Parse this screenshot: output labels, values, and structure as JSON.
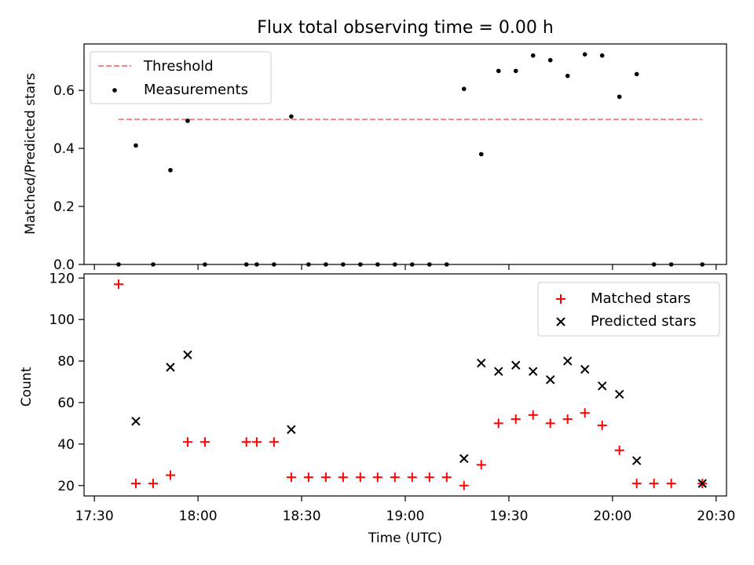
{
  "figure": {
    "title": "Flux total observing time = 0.00 h"
  },
  "colors": {
    "threshold": "#ff8080",
    "measurement": "#000000",
    "matched": "#ff0000",
    "predicted": "#000000"
  },
  "chart_data": [
    {
      "type": "scatter",
      "panel": "top",
      "title": "Flux total observing time = 0.00 h",
      "xlabel": "",
      "ylabel": "Matched/Predicted stars",
      "ylim": [
        0,
        0.76
      ],
      "yticks": [
        "0.0",
        "0.2",
        "0.4",
        "0.6"
      ],
      "ytick_values": [
        0,
        0.2,
        0.4,
        0.6
      ],
      "legend_position": "top-left",
      "threshold": {
        "name": "Threshold",
        "y": 0.5,
        "x_start": "17:37",
        "x_end": "20:26"
      },
      "series": [
        {
          "name": "Measurements",
          "points": [
            [
              "17:37",
              0.0
            ],
            [
              "17:42",
              0.41
            ],
            [
              "17:47",
              0.0
            ],
            [
              "17:52",
              0.325
            ],
            [
              "17:57",
              0.495
            ],
            [
              "18:02",
              0.0
            ],
            [
              "18:14",
              0.0
            ],
            [
              "18:17",
              0.0
            ],
            [
              "18:22",
              0.0
            ],
            [
              "18:27",
              0.51
            ],
            [
              "18:32",
              0.0
            ],
            [
              "18:37",
              0.0
            ],
            [
              "18:42",
              0.0
            ],
            [
              "18:47",
              0.0
            ],
            [
              "18:52",
              0.0
            ],
            [
              "18:57",
              0.0
            ],
            [
              "19:02",
              0.0
            ],
            [
              "19:07",
              0.0
            ],
            [
              "19:12",
              0.0
            ],
            [
              "19:17",
              0.605
            ],
            [
              "19:22",
              0.38
            ],
            [
              "19:27",
              0.667
            ],
            [
              "19:32",
              0.667
            ],
            [
              "19:37",
              0.72
            ],
            [
              "19:42",
              0.704
            ],
            [
              "19:47",
              0.65
            ],
            [
              "19:52",
              0.724
            ],
            [
              "19:57",
              0.72
            ],
            [
              "20:02",
              0.578
            ],
            [
              "20:07",
              0.656
            ],
            [
              "20:12",
              0.0
            ],
            [
              "20:17",
              0.0
            ],
            [
              "20:26",
              0.0
            ]
          ]
        }
      ]
    },
    {
      "type": "scatter",
      "panel": "bottom",
      "xlabel": "Time (UTC)",
      "ylabel": "Count",
      "ylim": [
        15,
        122
      ],
      "yticks": [
        "20",
        "40",
        "60",
        "80",
        "100",
        "120"
      ],
      "ytick_values": [
        20,
        40,
        60,
        80,
        100,
        120
      ],
      "xlim": [
        "17:27",
        "20:33"
      ],
      "xticks": [
        "17:30",
        "18:00",
        "18:30",
        "19:00",
        "19:30",
        "20:00",
        "20:30"
      ],
      "legend_position": "top-right",
      "series": [
        {
          "name": "Matched stars",
          "marker": "plus",
          "points": [
            [
              "17:37",
              117
            ],
            [
              "17:42",
              21
            ],
            [
              "17:47",
              21
            ],
            [
              "17:52",
              25
            ],
            [
              "17:57",
              41
            ],
            [
              "18:02",
              41
            ],
            [
              "18:14",
              41
            ],
            [
              "18:17",
              41
            ],
            [
              "18:22",
              41
            ],
            [
              "18:27",
              24
            ],
            [
              "18:32",
              24
            ],
            [
              "18:37",
              24
            ],
            [
              "18:42",
              24
            ],
            [
              "18:47",
              24
            ],
            [
              "18:52",
              24
            ],
            [
              "18:57",
              24
            ],
            [
              "19:02",
              24
            ],
            [
              "19:07",
              24
            ],
            [
              "19:12",
              24
            ],
            [
              "19:17",
              20
            ],
            [
              "19:22",
              30
            ],
            [
              "19:27",
              50
            ],
            [
              "19:32",
              52
            ],
            [
              "19:37",
              54
            ],
            [
              "19:42",
              50
            ],
            [
              "19:47",
              52
            ],
            [
              "19:52",
              55
            ],
            [
              "19:57",
              49
            ],
            [
              "20:02",
              37
            ],
            [
              "20:07",
              21
            ],
            [
              "20:12",
              21
            ],
            [
              "20:17",
              21
            ],
            [
              "20:26",
              21
            ]
          ]
        },
        {
          "name": "Predicted stars",
          "marker": "x",
          "points": [
            [
              "17:42",
              51
            ],
            [
              "17:52",
              77
            ],
            [
              "17:57",
              83
            ],
            [
              "18:27",
              47
            ],
            [
              "19:17",
              33
            ],
            [
              "19:22",
              79
            ],
            [
              "19:27",
              75
            ],
            [
              "19:32",
              78
            ],
            [
              "19:37",
              75
            ],
            [
              "19:42",
              71
            ],
            [
              "19:47",
              80
            ],
            [
              "19:52",
              76
            ],
            [
              "19:57",
              68
            ],
            [
              "20:02",
              64
            ],
            [
              "20:07",
              32
            ],
            [
              "20:26",
              21
            ]
          ]
        }
      ]
    }
  ]
}
